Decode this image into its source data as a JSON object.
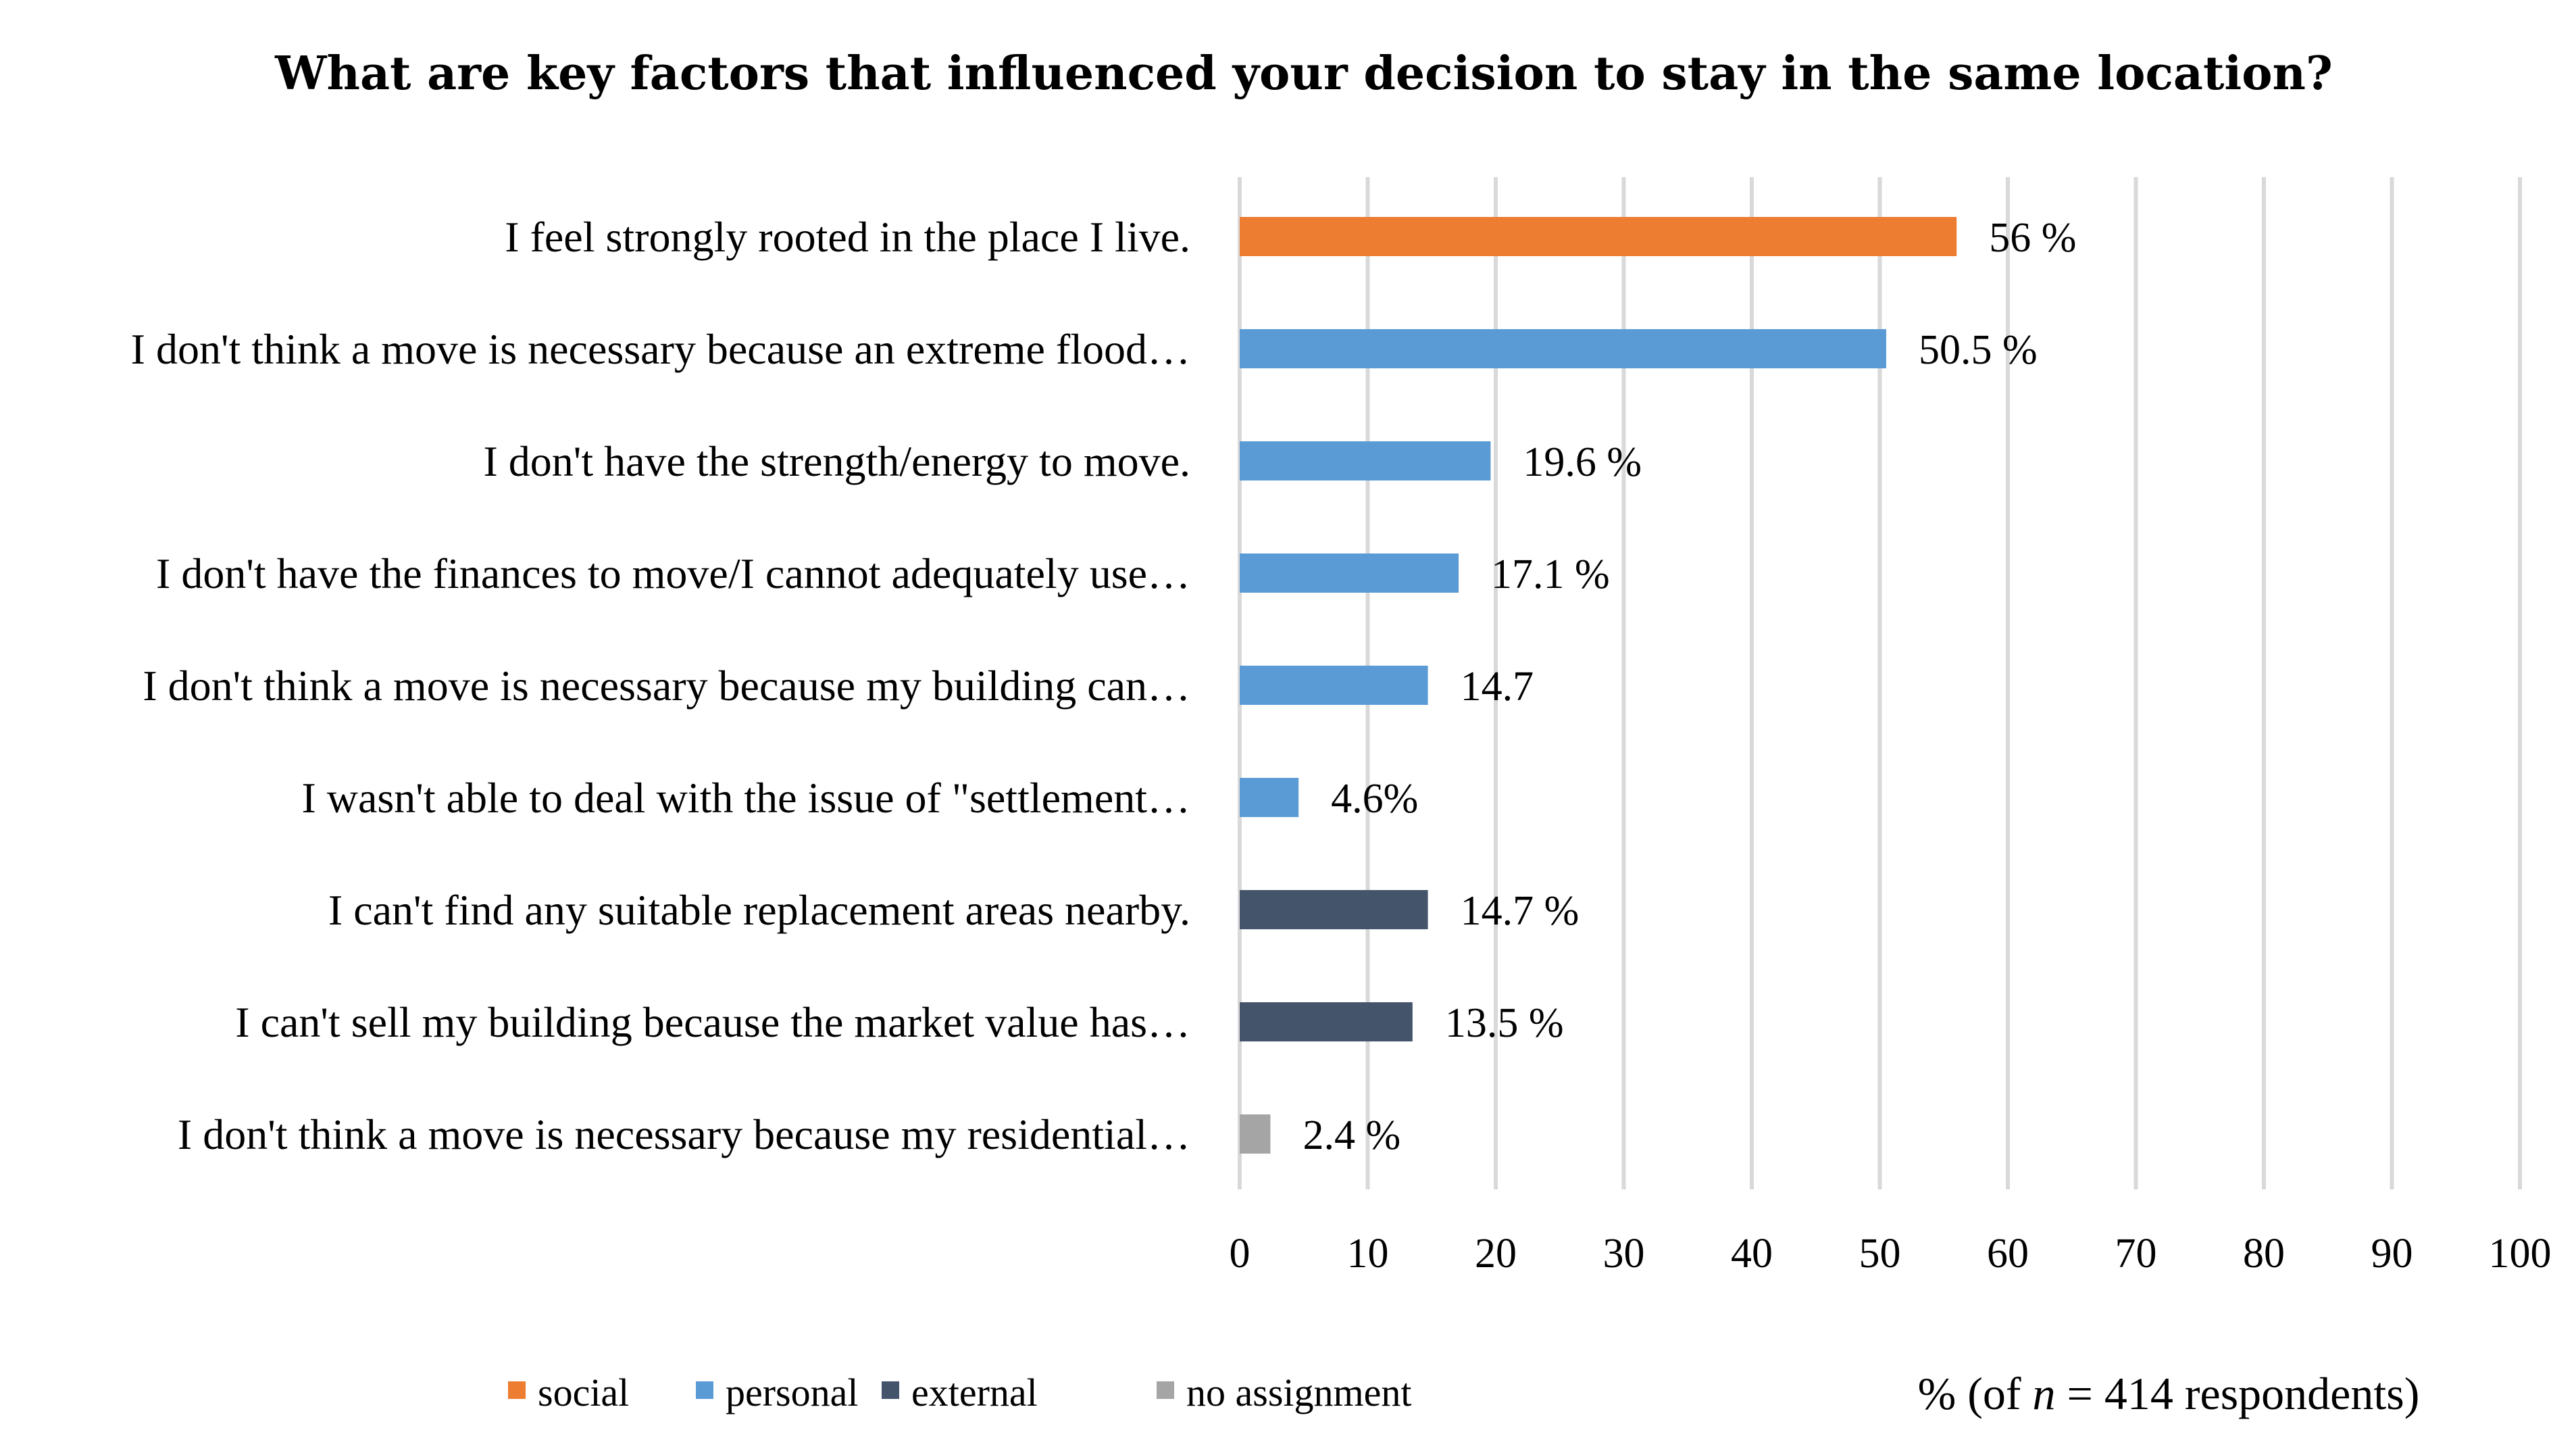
{
  "chart_data": {
    "type": "bar",
    "orientation": "horizontal",
    "title": "What are key factors that influenced your decision to stay in the same location?",
    "xlabel": {
      "prefix": "% (of ",
      "italic": "n",
      "suffix": " = 414 respondents)"
    },
    "xlim": [
      0,
      100
    ],
    "xticks": [
      0,
      10,
      20,
      30,
      40,
      50,
      60,
      70,
      80,
      90,
      100
    ],
    "grid": true,
    "legend_position": "bottom-left",
    "colors": {
      "social": "#ED7D31",
      "personal": "#5B9BD5",
      "external": "#44546A",
      "no assignment": "#A5A5A5"
    },
    "legend": [
      "social",
      "personal",
      "external",
      "no assignment"
    ],
    "bars": [
      {
        "label": "I feel strongly rooted in the place I live.",
        "value": 56,
        "value_label": "56 %",
        "group": "social"
      },
      {
        "label": "I don't think a move is necessary because an extreme flood…",
        "value": 50.5,
        "value_label": "50.5 %",
        "group": "personal"
      },
      {
        "label": "I don't have the strength/energy to move.",
        "value": 19.6,
        "value_label": "19.6 %",
        "group": "personal"
      },
      {
        "label": "I don't have the finances to move/I cannot adequately use…",
        "value": 17.1,
        "value_label": "17.1 %",
        "group": "personal"
      },
      {
        "label": "I don't think a move is necessary because my building can…",
        "value": 14.7,
        "value_label": "14.7",
        "group": "personal"
      },
      {
        "label": "I wasn't able to deal with the issue of \"settlement…",
        "value": 4.6,
        "value_label": "4.6%",
        "group": "personal"
      },
      {
        "label": "I can't find any suitable replacement areas nearby.",
        "value": 14.7,
        "value_label": "14.7 %",
        "group": "external"
      },
      {
        "label": "I can't sell my building because the market value has…",
        "value": 13.5,
        "value_label": "13.5 %",
        "group": "external"
      },
      {
        "label": "I don't think a move is necessary because my residential…",
        "value": 2.4,
        "value_label": "2.4 %",
        "group": "no assignment"
      }
    ]
  }
}
